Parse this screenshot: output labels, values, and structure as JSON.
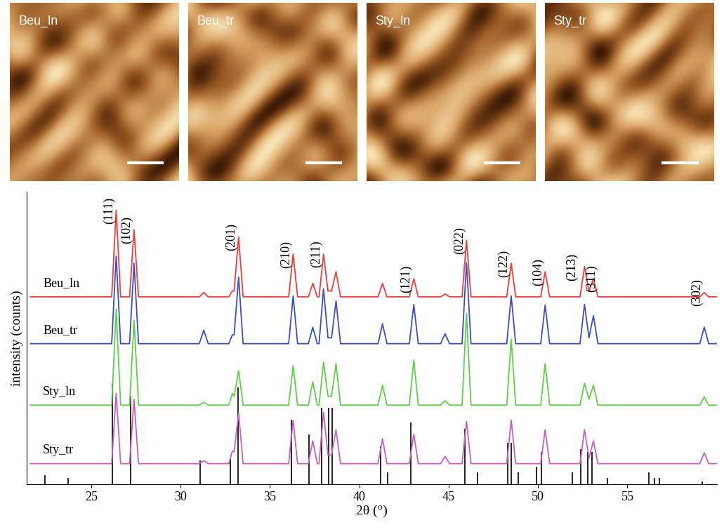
{
  "chart_data": {
    "type": "line",
    "images": [
      {
        "label": "Beu_ln"
      },
      {
        "label": "Beu_tr"
      },
      {
        "label": "Sty_ln"
      },
      {
        "label": "Sty_tr"
      }
    ],
    "x_label": "2θ (°)",
    "y_label": "intensity (counts)",
    "xlim": [
      21.4,
      60.0
    ],
    "xticks": [
      25,
      30,
      35,
      40,
      45,
      50,
      55
    ],
    "ylim": [
      0,
      100
    ],
    "yticks": [],
    "tick_labels": "x",
    "x": [
      21.6,
      26.15,
      26.4,
      26.65,
      27.15,
      27.4,
      27.65,
      31.05,
      31.3,
      31.55,
      32.7,
      32.9,
      33.0,
      33.25,
      33.5,
      36.05,
      36.3,
      36.55,
      37.15,
      37.4,
      37.65,
      37.75,
      38.0,
      38.25,
      38.45,
      38.7,
      38.95,
      41.05,
      41.3,
      41.55,
      42.8,
      43.05,
      43.3,
      44.55,
      44.8,
      45.05,
      45.75,
      46.0,
      46.25,
      48.25,
      48.5,
      48.75,
      50.15,
      50.4,
      50.65,
      52.35,
      52.6,
      52.85,
      53.1,
      53.35,
      59.05,
      59.3,
      59.55,
      60.0
    ],
    "series": [
      {
        "name": "Beu_ln",
        "color": "#f03c3c",
        "values": [
          64,
          64,
          93.6,
          64,
          64,
          86.9,
          64,
          64,
          65.5,
          64,
          64,
          66,
          66,
          84.5,
          64,
          64,
          78.6,
          64,
          64,
          68.6,
          64,
          64,
          78.6,
          66,
          66,
          72.6,
          64,
          64,
          68.6,
          64,
          64,
          70.2,
          64,
          64,
          65,
          64,
          64,
          83.3,
          64,
          64,
          75.5,
          64,
          64,
          72.6,
          64,
          64,
          74.3,
          66,
          70.2,
          64,
          64,
          65.5,
          64,
          64
        ]
      },
      {
        "name": "Beu_tr",
        "color": "#3a4fc4",
        "values": [
          48,
          48,
          77.9,
          48,
          48,
          75.5,
          48,
          48,
          52.6,
          48,
          48,
          51,
          51,
          70.7,
          48,
          48,
          64.3,
          48,
          48,
          53.6,
          48,
          48,
          66.7,
          50,
          50,
          62.6,
          48,
          48,
          54.8,
          48,
          48,
          61.4,
          48,
          48,
          51.4,
          48,
          48,
          75.7,
          48,
          48,
          64.3,
          48,
          48,
          61.2,
          48,
          48,
          61.4,
          50,
          57.6,
          48,
          48,
          53.6,
          48,
          48
        ]
      },
      {
        "name": "Sty_ln",
        "color": "#5fd04a",
        "values": [
          27,
          27,
          59.8,
          27,
          27,
          56,
          27,
          27,
          28,
          27,
          27,
          31,
          30,
          38.8,
          27,
          27,
          40.5,
          27,
          27,
          35,
          27,
          27,
          41.7,
          30,
          30,
          41.2,
          27,
          27,
          33.8,
          27,
          27,
          42.4,
          27,
          27,
          28.5,
          27,
          27,
          58.3,
          27,
          27,
          49.5,
          27,
          27,
          41.2,
          27,
          27,
          34.5,
          29,
          33.8,
          27,
          27,
          29.8,
          27,
          27
        ]
      },
      {
        "name": "Sty_tr",
        "color": "#c860c0",
        "values": [
          7,
          7,
          31,
          7,
          7,
          29,
          7,
          7,
          8,
          7,
          7,
          11.4,
          11,
          24.3,
          7,
          7,
          21.9,
          7,
          7,
          14.8,
          7,
          7,
          24.5,
          10,
          10,
          18.6,
          7,
          7,
          15.5,
          7,
          7,
          17.1,
          7,
          7,
          9.5,
          7,
          7,
          21.4,
          7,
          7,
          21.9,
          7,
          7,
          18.6,
          7,
          7,
          18.6,
          9,
          14.8,
          7,
          7,
          10.7,
          7,
          7
        ]
      }
    ],
    "sticks": {
      "color": "#000000",
      "x": [
        22.4,
        23.7,
        26.2,
        27.2,
        31.1,
        32.8,
        33.2,
        36.2,
        37.2,
        37.9,
        38.3,
        38.5,
        41.2,
        41.6,
        42.9,
        45.9,
        46.6,
        48.3,
        48.5,
        48.9,
        49.9,
        50.2,
        51.9,
        52.4,
        52.8,
        53.0,
        53.9,
        56.2,
        56.5,
        56.8,
        59.2
      ],
      "values": [
        3,
        2,
        34.5,
        30,
        8,
        9,
        33,
        22,
        17,
        26,
        26,
        26,
        13,
        4,
        21,
        19,
        4,
        14,
        14,
        4,
        6,
        11,
        4,
        12,
        11,
        11,
        2,
        4,
        2,
        2,
        1
      ]
    },
    "peak_labels": [
      {
        "x": 26.4,
        "label": "(111)"
      },
      {
        "x": 27.4,
        "label": "(102)"
      },
      {
        "x": 33.25,
        "label": "(201)"
      },
      {
        "x": 36.3,
        "label": "(210)"
      },
      {
        "x": 38.0,
        "label": "(211)"
      },
      {
        "x": 43.05,
        "label": "(121)"
      },
      {
        "x": 46.0,
        "label": "(022)"
      },
      {
        "x": 48.5,
        "label": "(122)"
      },
      {
        "x": 50.4,
        "label": "(104)"
      },
      {
        "x": 52.6,
        "label": "(213)"
      },
      {
        "x": 53.1,
        "label": "(311)"
      },
      {
        "x": 59.3,
        "label": "(302)"
      }
    ]
  }
}
